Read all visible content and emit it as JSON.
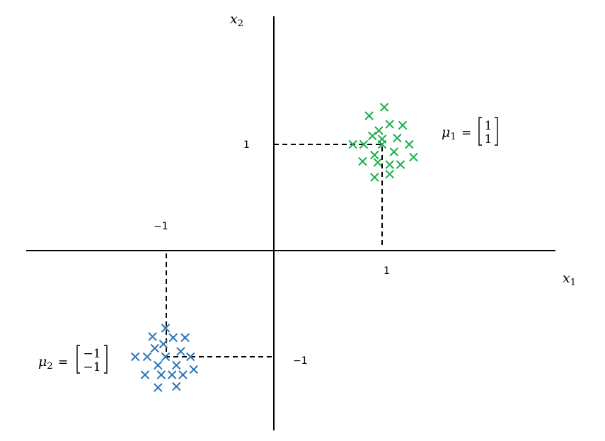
{
  "axes": {
    "x_label": "x",
    "x_label_sub": "1",
    "y_label": "x",
    "y_label_sub": "2"
  },
  "ticks": {
    "x_pos": "1",
    "x_neg": "−1",
    "y_pos": "1",
    "y_neg": "−1"
  },
  "clusters": [
    {
      "name": "mu1",
      "symbol": "μ",
      "subscript": "1",
      "equals": "=",
      "vector": [
        "1",
        "1"
      ],
      "center": [
        1,
        1
      ],
      "color": "#1aaf4f",
      "points": [
        [
          0.88,
          1.27
        ],
        [
          1.02,
          1.35
        ],
        [
          1.07,
          1.19
        ],
        [
          1.19,
          1.18
        ],
        [
          0.91,
          1.08
        ],
        [
          0.97,
          1.13
        ],
        [
          1.0,
          1.05
        ],
        [
          1.14,
          1.06
        ],
        [
          0.73,
          1.0
        ],
        [
          0.83,
          1.0
        ],
        [
          1.0,
          1.0
        ],
        [
          1.25,
          1.0
        ],
        [
          0.93,
          0.9
        ],
        [
          1.11,
          0.93
        ],
        [
          1.29,
          0.88
        ],
        [
          0.82,
          0.84
        ],
        [
          0.96,
          0.83
        ],
        [
          1.07,
          0.81
        ],
        [
          1.17,
          0.81
        ],
        [
          0.93,
          0.69
        ],
        [
          1.07,
          0.72
        ]
      ]
    },
    {
      "name": "mu2",
      "symbol": "μ",
      "subscript": "2",
      "equals": "=",
      "vector": [
        "−1",
        "−1"
      ],
      "center": [
        -1,
        -1
      ],
      "color": "#2e75b6",
      "points": [
        [
          -1.0,
          -0.73
        ],
        [
          -1.12,
          -0.81
        ],
        [
          -0.93,
          -0.82
        ],
        [
          -0.82,
          -0.82
        ],
        [
          -1.02,
          -0.88
        ],
        [
          -1.1,
          -0.92
        ],
        [
          -0.86,
          -0.95
        ],
        [
          -1.28,
          -1.0
        ],
        [
          -1.17,
          -1.0
        ],
        [
          -1.0,
          -1.0
        ],
        [
          -0.77,
          -1.0
        ],
        [
          -1.07,
          -1.08
        ],
        [
          -0.9,
          -1.08
        ],
        [
          -0.74,
          -1.12
        ],
        [
          -1.19,
          -1.17
        ],
        [
          -1.04,
          -1.17
        ],
        [
          -0.94,
          -1.17
        ],
        [
          -0.84,
          -1.17
        ],
        [
          -1.07,
          -1.29
        ],
        [
          -0.9,
          -1.28
        ]
      ]
    }
  ]
}
